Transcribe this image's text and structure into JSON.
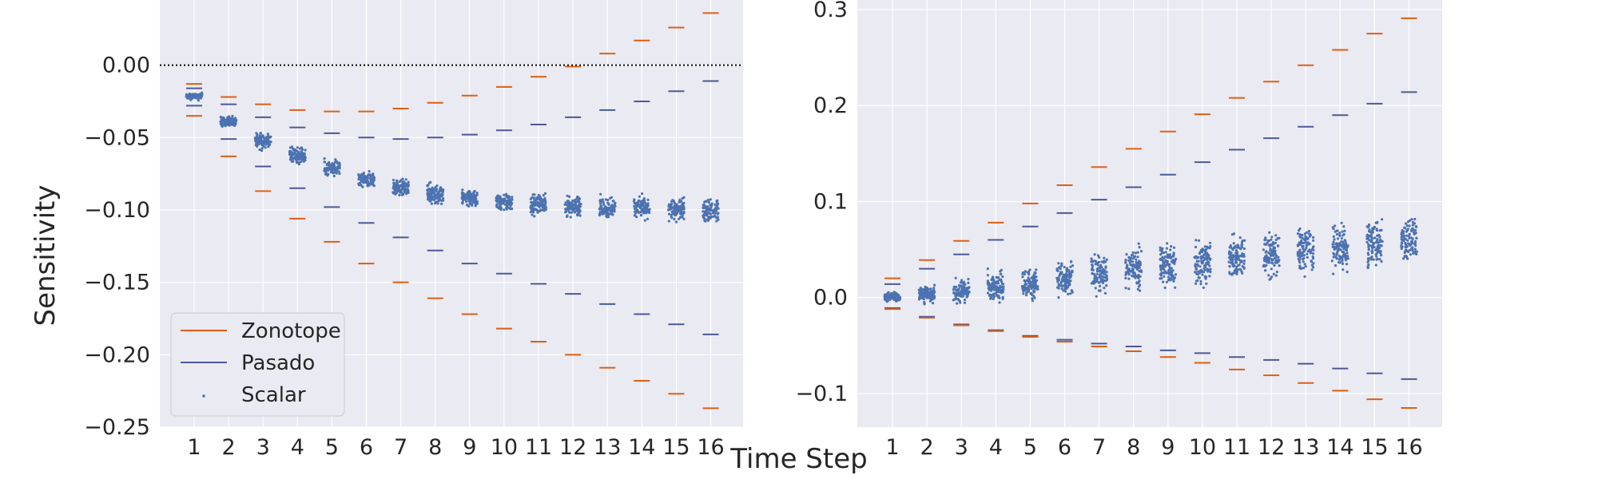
{
  "figure": {
    "xlabel": "Time Step",
    "ylabel": "Sensitivity",
    "legend": [
      {
        "label": "Zonotope",
        "color": "#dd5f12",
        "marker": "line"
      },
      {
        "label": "Pasado",
        "color": "#4c5896",
        "marker": "line"
      },
      {
        "label": "Scalar",
        "color": "#4c72b0",
        "marker": "dot"
      }
    ],
    "legend_location": "lower-left (left panel)",
    "style": {
      "background": "#eaeaf2",
      "grid": "#ffffff",
      "scatter_color": "#4c72b0"
    }
  },
  "chart_data": [
    {
      "type": "scatter",
      "panel": "left",
      "x": [
        1,
        2,
        3,
        4,
        5,
        6,
        7,
        8,
        9,
        10,
        11,
        12,
        13,
        14,
        15,
        16
      ],
      "xticks": [
        "1",
        "2",
        "3",
        "4",
        "5",
        "6",
        "7",
        "8",
        "9",
        "10",
        "11",
        "12",
        "13",
        "14",
        "15",
        "16"
      ],
      "yticks": [
        "0.00",
        "−0.05",
        "−0.10",
        "−0.15",
        "−0.20",
        "−0.25"
      ],
      "ylim": [
        -0.25,
        0.045
      ],
      "grid": true,
      "reference_line": {
        "y": 0,
        "style": "dotted"
      },
      "series": [
        {
          "name": "Zonotope",
          "upper": [
            -0.013,
            -0.022,
            -0.027,
            -0.031,
            -0.032,
            -0.032,
            -0.03,
            -0.026,
            -0.021,
            -0.015,
            -0.008,
            -0.001,
            0.008,
            0.017,
            0.026,
            0.036
          ],
          "lower": [
            -0.035,
            -0.063,
            -0.087,
            -0.106,
            -0.122,
            -0.137,
            -0.15,
            -0.161,
            -0.172,
            -0.182,
            -0.191,
            -0.2,
            -0.209,
            -0.218,
            -0.227,
            -0.237
          ]
        },
        {
          "name": "Pasado",
          "upper": [
            -0.016,
            -0.027,
            -0.036,
            -0.043,
            -0.047,
            -0.05,
            -0.051,
            -0.05,
            -0.048,
            -0.045,
            -0.041,
            -0.036,
            -0.031,
            -0.025,
            -0.018,
            -0.011
          ],
          "lower": [
            -0.028,
            -0.051,
            -0.07,
            -0.085,
            -0.098,
            -0.109,
            -0.119,
            -0.128,
            -0.137,
            -0.144,
            -0.151,
            -0.158,
            -0.165,
            -0.172,
            -0.179,
            -0.186
          ]
        },
        {
          "name": "Scalar",
          "min": [
            -0.025,
            -0.044,
            -0.06,
            -0.071,
            -0.08,
            -0.087,
            -0.093,
            -0.098,
            -0.101,
            -0.104,
            -0.106,
            -0.108,
            -0.109,
            -0.11,
            -0.111,
            -0.113
          ],
          "max": [
            -0.018,
            -0.034,
            -0.044,
            -0.054,
            -0.063,
            -0.071,
            -0.076,
            -0.08,
            -0.083,
            -0.085,
            -0.086,
            -0.087,
            -0.088,
            -0.088,
            -0.088,
            -0.088
          ]
        }
      ]
    },
    {
      "type": "scatter",
      "panel": "right",
      "x": [
        1,
        2,
        3,
        4,
        5,
        6,
        7,
        8,
        9,
        10,
        11,
        12,
        13,
        14,
        15,
        16
      ],
      "xticks": [
        "1",
        "2",
        "3",
        "4",
        "5",
        "6",
        "7",
        "8",
        "9",
        "10",
        "11",
        "12",
        "13",
        "14",
        "15",
        "16"
      ],
      "yticks": [
        "0.3",
        "0.2",
        "0.1",
        "0.0",
        "−0.1"
      ],
      "ylim": [
        -0.135,
        0.31
      ],
      "grid": true,
      "series": [
        {
          "name": "Zonotope",
          "upper": [
            0.02,
            0.039,
            0.059,
            0.078,
            0.098,
            0.117,
            0.136,
            0.155,
            0.173,
            0.191,
            0.208,
            0.225,
            0.242,
            0.258,
            0.275,
            0.291
          ],
          "lower": [
            -0.012,
            -0.021,
            -0.029,
            -0.035,
            -0.041,
            -0.046,
            -0.051,
            -0.056,
            -0.062,
            -0.068,
            -0.075,
            -0.081,
            -0.089,
            -0.097,
            -0.106,
            -0.115
          ]
        },
        {
          "name": "Pasado",
          "upper": [
            0.014,
            0.03,
            0.045,
            0.06,
            0.074,
            0.088,
            0.102,
            0.115,
            0.128,
            0.141,
            0.154,
            0.166,
            0.178,
            0.19,
            0.202,
            0.214
          ],
          "lower": [
            -0.011,
            -0.02,
            -0.028,
            -0.034,
            -0.04,
            -0.044,
            -0.048,
            -0.051,
            -0.055,
            -0.058,
            -0.062,
            -0.065,
            -0.069,
            -0.074,
            -0.079,
            -0.085
          ]
        },
        {
          "name": "Scalar",
          "min": [
            -0.007,
            -0.01,
            -0.011,
            -0.011,
            -0.01,
            -0.008,
            -0.005,
            -0.003,
            -0.001,
            0.002,
            0.005,
            0.009,
            0.013,
            0.017,
            0.021,
            0.027
          ],
          "max": [
            0.008,
            0.017,
            0.025,
            0.033,
            0.041,
            0.048,
            0.055,
            0.062,
            0.067,
            0.072,
            0.077,
            0.081,
            0.085,
            0.089,
            0.092,
            0.095
          ]
        }
      ]
    }
  ]
}
